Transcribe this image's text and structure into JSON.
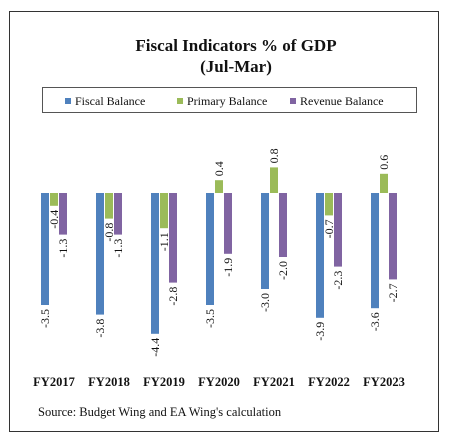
{
  "chart_data": {
    "type": "bar",
    "title": "Fiscal Indicators % of GDP",
    "subtitle": "(Jul-Mar)",
    "categories": [
      "FY2017",
      "FY2018",
      "FY2019",
      "FY2020",
      "FY2021",
      "FY2022",
      "FY2023"
    ],
    "series": [
      {
        "name": "Fiscal Balance",
        "color": "#4f81bd",
        "values": [
          -3.5,
          -3.8,
          -4.4,
          -3.5,
          -3.0,
          -3.9,
          -3.6
        ]
      },
      {
        "name": "Primary Balance",
        "color": "#9bbb59",
        "values": [
          -0.4,
          -0.8,
          -1.1,
          0.4,
          0.8,
          -0.7,
          0.6
        ]
      },
      {
        "name": "Revenue Balance",
        "color": "#8064a2",
        "values": [
          -1.3,
          -1.3,
          -2.8,
          -1.9,
          -2.0,
          -2.3,
          -2.7
        ]
      }
    ],
    "legend_position": "top",
    "data_labels": true,
    "grid": false
  },
  "source": "Source: Budget Wing and EA Wing's calculation"
}
